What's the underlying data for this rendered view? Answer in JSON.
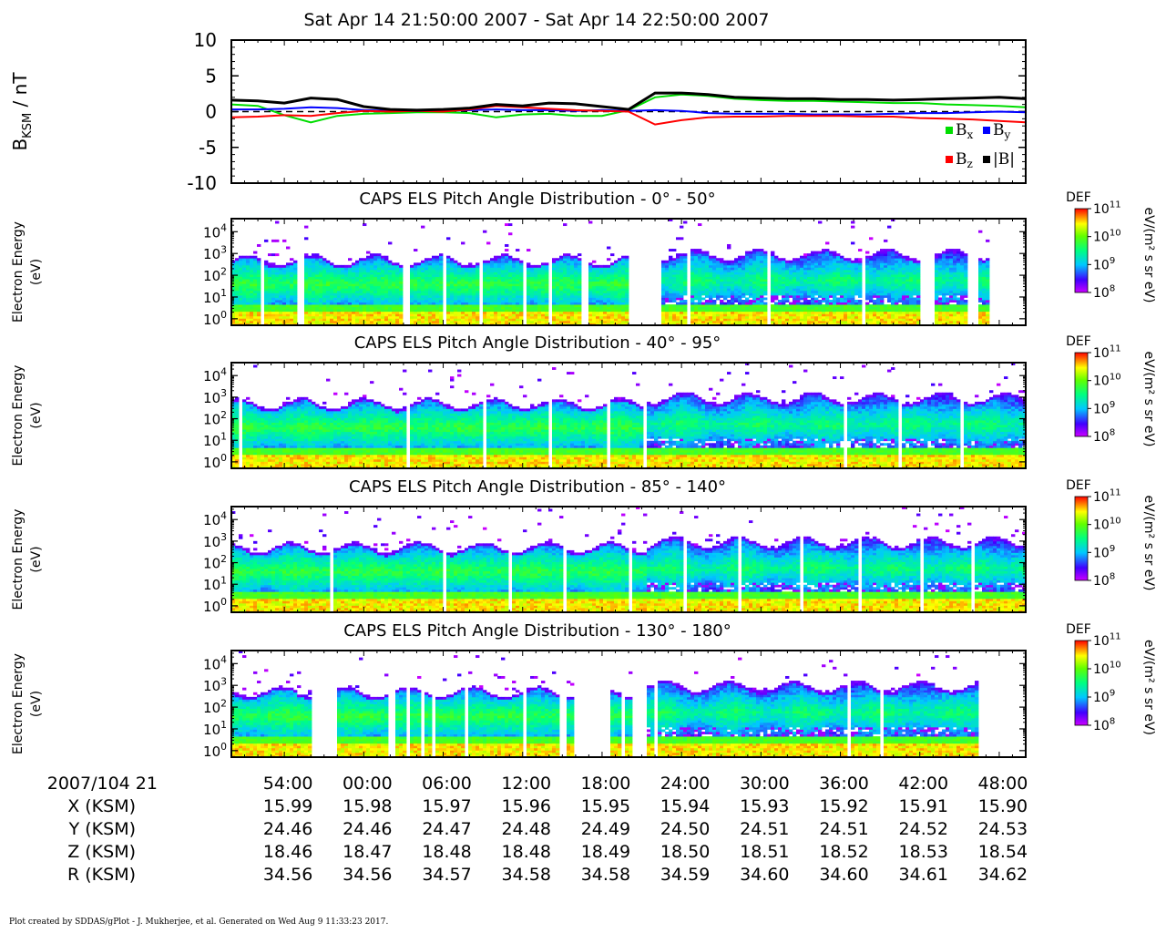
{
  "title": "Sat Apr 14 21:50:00 2007 - Sat Apr 14 22:50:00 2007",
  "footer": "Plot created by SDDAS/gPlot - J. Mukherjee, et al.  Generated on Wed Aug 9 11:33:23 2017.",
  "chart_data": [
    {
      "type": "line",
      "ylabel": "B",
      "ylabel_sub": "KSM",
      "ylabel_unit": " / nT",
      "ylim": [
        -10,
        10
      ],
      "yticks": [
        -10,
        -5,
        0,
        5,
        10
      ],
      "reference_line": {
        "y": 0,
        "style": "dashed"
      },
      "x_unit": "minutes after 21:50",
      "x": [
        0,
        2,
        4,
        6,
        8,
        10,
        12,
        14,
        16,
        18,
        20,
        22,
        24,
        26,
        28,
        30,
        32,
        34,
        36,
        38,
        40,
        42,
        44,
        46,
        48,
        50,
        52,
        54,
        56,
        58,
        60
      ],
      "series": [
        {
          "name": "Bx",
          "label_main": "B",
          "label_sub": "x",
          "color": "#00dd00",
          "values": [
            1.0,
            0.8,
            -0.5,
            -1.5,
            -0.6,
            -0.3,
            -0.2,
            -0.1,
            -0.1,
            -0.2,
            -0.8,
            -0.4,
            -0.3,
            -0.6,
            -0.6,
            0.2,
            2.0,
            2.4,
            2.2,
            1.8,
            1.6,
            1.5,
            1.5,
            1.4,
            1.3,
            1.2,
            1.2,
            1.0,
            0.9,
            0.8,
            0.6
          ]
        },
        {
          "name": "By",
          "label_main": "B",
          "label_sub": "y",
          "color": "#0000ff",
          "values": [
            0.3,
            0.3,
            0.4,
            0.6,
            0.5,
            0.2,
            0.1,
            0.1,
            0.1,
            0.2,
            0.3,
            0.2,
            0.2,
            0.1,
            0.2,
            0.1,
            0.2,
            0.1,
            -0.2,
            -0.3,
            -0.3,
            -0.3,
            -0.4,
            -0.4,
            -0.4,
            -0.3,
            -0.2,
            -0.2,
            -0.1,
            0.0,
            -0.1
          ]
        },
        {
          "name": "Bz",
          "label_main": "B",
          "label_sub": "z",
          "color": "#ff0000",
          "values": [
            -0.8,
            -0.7,
            -0.5,
            -0.6,
            -0.2,
            0.1,
            0.0,
            0.1,
            0.0,
            0.3,
            0.8,
            0.6,
            0.4,
            0.2,
            0.1,
            0.0,
            -1.8,
            -1.2,
            -0.8,
            -0.7,
            -0.7,
            -0.6,
            -0.6,
            -0.6,
            -0.7,
            -0.7,
            -0.9,
            -1.0,
            -1.1,
            -1.3,
            -1.5
          ]
        },
        {
          "name": "|B|",
          "label_main": "|B|",
          "label_sub": "",
          "color": "#000000",
          "values": [
            1.6,
            1.5,
            1.2,
            1.9,
            1.7,
            0.7,
            0.3,
            0.2,
            0.3,
            0.5,
            1.0,
            0.8,
            1.2,
            1.1,
            0.7,
            0.3,
            2.6,
            2.6,
            2.4,
            2.0,
            1.9,
            1.8,
            1.8,
            1.7,
            1.7,
            1.6,
            1.7,
            1.8,
            1.9,
            2.0,
            1.8
          ]
        }
      ]
    },
    {
      "type": "heatmap",
      "title": "CAPS ELS Pitch Angle Distribution - 0° - 50°",
      "ylabel": [
        "Electron Energy",
        "(eV)"
      ],
      "yscale": "log",
      "yticks": [
        {
          "base": "10",
          "exp": "0"
        },
        {
          "base": "10",
          "exp": "1"
        },
        {
          "base": "10",
          "exp": "2"
        },
        {
          "base": "10",
          "exp": "3"
        },
        {
          "base": "10",
          "exp": "4"
        }
      ],
      "colorbar": {
        "label": "DEF",
        "units": "eV/(m² s sr eV)",
        "scale": "log",
        "ticks": [
          {
            "base": "10",
            "exp": "8"
          },
          {
            "base": "10",
            "exp": "9"
          },
          {
            "base": "10",
            "exp": "10"
          },
          {
            "base": "10",
            "exp": "11"
          }
        ]
      }
    },
    {
      "type": "heatmap",
      "title": "CAPS ELS Pitch Angle Distribution - 40° - 95°",
      "ylabel": [
        "Electron Energy",
        "(eV)"
      ],
      "yscale": "log",
      "yticks": [
        {
          "base": "10",
          "exp": "0"
        },
        {
          "base": "10",
          "exp": "1"
        },
        {
          "base": "10",
          "exp": "2"
        },
        {
          "base": "10",
          "exp": "3"
        },
        {
          "base": "10",
          "exp": "4"
        }
      ],
      "colorbar": {
        "label": "DEF",
        "units": "eV/(m² s sr eV)",
        "scale": "log",
        "ticks": [
          {
            "base": "10",
            "exp": "8"
          },
          {
            "base": "10",
            "exp": "9"
          },
          {
            "base": "10",
            "exp": "10"
          },
          {
            "base": "10",
            "exp": "11"
          }
        ]
      }
    },
    {
      "type": "heatmap",
      "title": "CAPS ELS Pitch Angle Distribution - 85° - 140°",
      "ylabel": [
        "Electron Energy",
        "(eV)"
      ],
      "yscale": "log",
      "yticks": [
        {
          "base": "10",
          "exp": "0"
        },
        {
          "base": "10",
          "exp": "1"
        },
        {
          "base": "10",
          "exp": "2"
        },
        {
          "base": "10",
          "exp": "3"
        },
        {
          "base": "10",
          "exp": "4"
        }
      ],
      "colorbar": {
        "label": "DEF",
        "units": "eV/(m² s sr eV)",
        "scale": "log",
        "ticks": [
          {
            "base": "10",
            "exp": "8"
          },
          {
            "base": "10",
            "exp": "9"
          },
          {
            "base": "10",
            "exp": "10"
          },
          {
            "base": "10",
            "exp": "11"
          }
        ]
      }
    },
    {
      "type": "heatmap",
      "title": "CAPS ELS Pitch Angle Distribution - 130° - 180°",
      "ylabel": [
        "Electron Energy",
        "(eV)"
      ],
      "yscale": "log",
      "yticks": [
        {
          "base": "10",
          "exp": "0"
        },
        {
          "base": "10",
          "exp": "1"
        },
        {
          "base": "10",
          "exp": "2"
        },
        {
          "base": "10",
          "exp": "3"
        },
        {
          "base": "10",
          "exp": "4"
        }
      ],
      "colorbar": {
        "label": "DEF",
        "units": "eV/(m² s sr eV)",
        "scale": "log",
        "ticks": [
          {
            "base": "10",
            "exp": "8"
          },
          {
            "base": "10",
            "exp": "9"
          },
          {
            "base": "10",
            "exp": "10"
          },
          {
            "base": "10",
            "exp": "11"
          }
        ]
      }
    }
  ],
  "time_axis": {
    "start_label": "2007/104 21",
    "tick_minutes": [
      4,
      10,
      16,
      22,
      28,
      34,
      40,
      46,
      52,
      58
    ],
    "tick_labels": [
      "54:00",
      "00:00",
      "06:00",
      "12:00",
      "18:00",
      "24:00",
      "30:00",
      "36:00",
      "42:00",
      "48:00"
    ],
    "rows": [
      {
        "label": "X (KSM)",
        "values": [
          "15.99",
          "15.98",
          "15.97",
          "15.96",
          "15.95",
          "15.94",
          "15.93",
          "15.92",
          "15.91",
          "15.90"
        ]
      },
      {
        "label": "Y (KSM)",
        "values": [
          "24.46",
          "24.46",
          "24.47",
          "24.48",
          "24.49",
          "24.50",
          "24.51",
          "24.51",
          "24.52",
          "24.53"
        ]
      },
      {
        "label": "Z (KSM)",
        "values": [
          "18.46",
          "18.47",
          "18.48",
          "18.48",
          "18.49",
          "18.50",
          "18.51",
          "18.52",
          "18.53",
          "18.54"
        ]
      },
      {
        "label": "R (KSM)",
        "values": [
          "34.56",
          "34.56",
          "34.57",
          "34.58",
          "34.58",
          "34.59",
          "34.60",
          "34.60",
          "34.61",
          "34.62"
        ]
      }
    ]
  }
}
